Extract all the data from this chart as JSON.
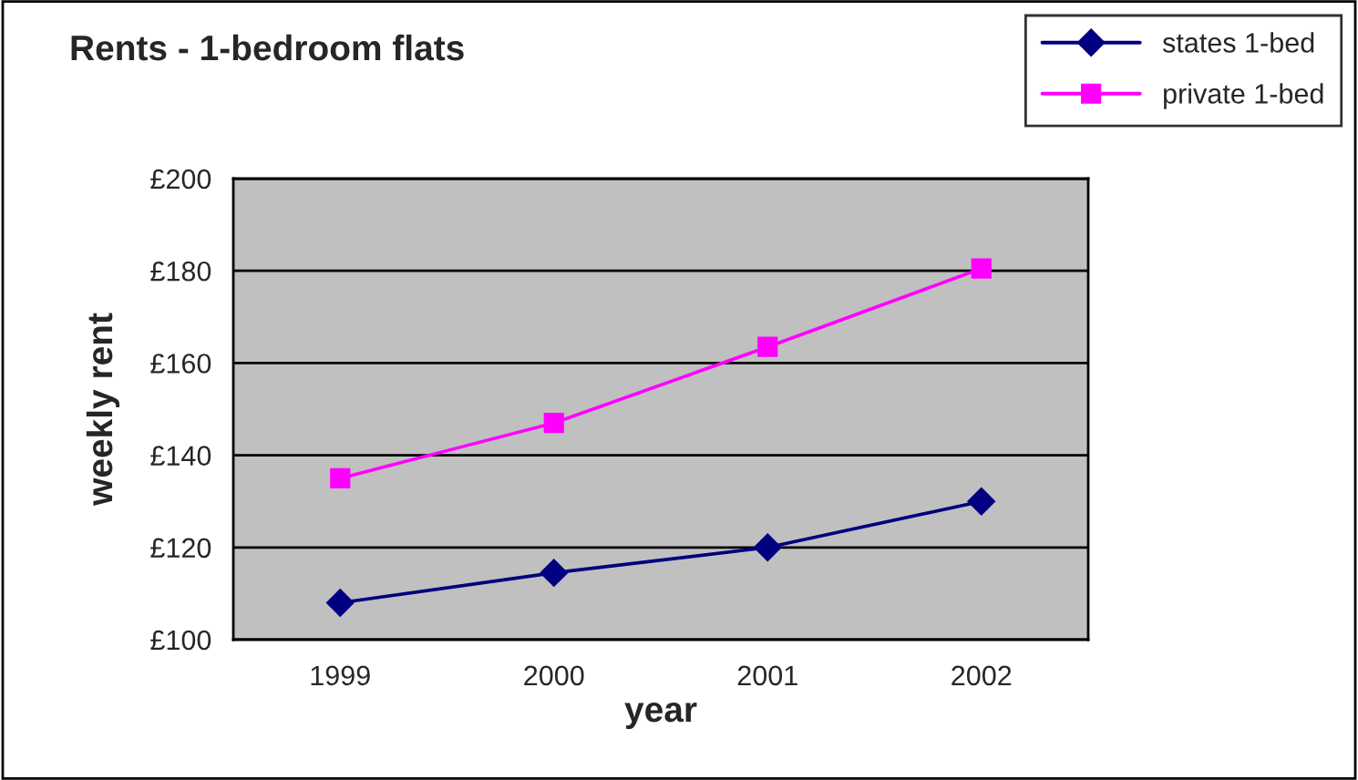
{
  "chart_data": {
    "type": "line",
    "title": "Rents - 1-bedroom flats",
    "xlabel": "year",
    "ylabel": "weekly rent",
    "categories": [
      "1999",
      "2000",
      "2001",
      "2002"
    ],
    "series": [
      {
        "name": "states 1-bed",
        "color": "#000080",
        "marker": "diamond",
        "values": [
          108,
          114.5,
          120,
          130
        ]
      },
      {
        "name": "private 1-bed",
        "color": "#ff00ff",
        "marker": "square",
        "values": [
          135,
          147,
          163.5,
          180.5
        ]
      }
    ],
    "ylim": [
      100,
      200
    ],
    "yticks": [
      {
        "value": 100,
        "label": "£100"
      },
      {
        "value": 120,
        "label": "£120"
      },
      {
        "value": 140,
        "label": "£140"
      },
      {
        "value": 160,
        "label": "£160"
      },
      {
        "value": 180,
        "label": "£180"
      },
      {
        "value": 200,
        "label": "£200"
      }
    ],
    "grid": "y",
    "legend": "top right",
    "line_style": "solid"
  }
}
